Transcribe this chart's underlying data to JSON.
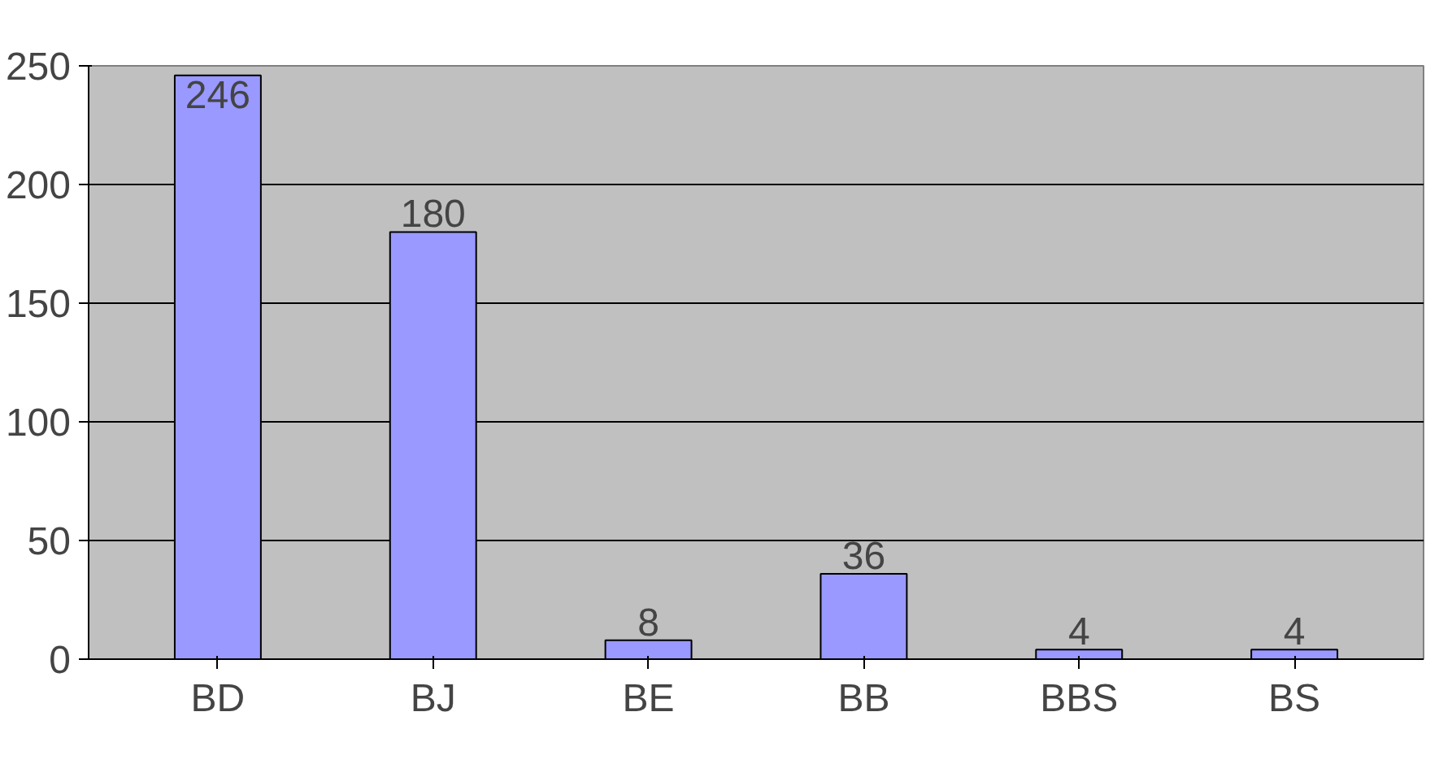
{
  "chart_data": {
    "type": "bar",
    "categories": [
      "BD",
      "BJ",
      "BE",
      "BB",
      "BBS",
      "BS"
    ],
    "values": [
      246,
      180,
      8,
      36,
      4,
      4
    ],
    "color": "#9999ff",
    "ylim": [
      0,
      250
    ],
    "yticks": [
      0,
      50,
      100,
      150,
      200,
      250
    ],
    "grid": "y",
    "data_labels": true
  }
}
